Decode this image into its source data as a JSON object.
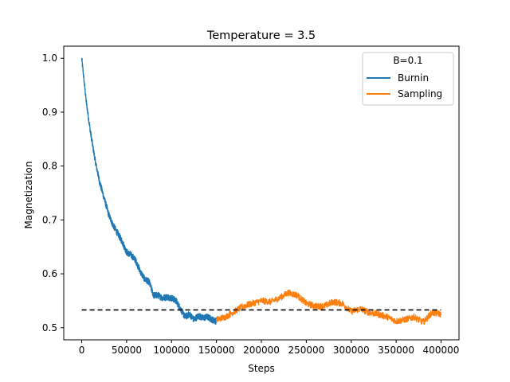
{
  "chart_data": {
    "type": "line",
    "title": "Temperature = 3.5",
    "xlabel": "Steps",
    "ylabel": "Magnetization",
    "xlim": [
      -20000,
      420000
    ],
    "ylim": [
      0.4775,
      1.0225
    ],
    "xticks": [
      0,
      50000,
      100000,
      150000,
      200000,
      250000,
      300000,
      350000,
      400000
    ],
    "yticks": [
      0.5,
      0.6,
      0.7,
      0.8,
      0.9,
      1.0
    ],
    "xtick_labels": [
      "0",
      "50000",
      "100000",
      "150000",
      "200000",
      "250000",
      "300000",
      "350000",
      "400000"
    ],
    "ytick_labels": [
      "0.5",
      "0.6",
      "0.7",
      "0.8",
      "0.9",
      "1.0"
    ],
    "grid": false,
    "legend": {
      "title": "B=0.1",
      "position": "top-right"
    },
    "series": [
      {
        "name": "Burnin",
        "color": "#1f77b4",
        "x": [
          0,
          5000,
          10000,
          15000,
          20000,
          25000,
          30000,
          35000,
          40000,
          45000,
          50000,
          55000,
          60000,
          65000,
          70000,
          75000,
          80000,
          85000,
          90000,
          95000,
          100000,
          105000,
          110000,
          115000,
          120000,
          125000,
          130000,
          135000,
          140000,
          145000,
          150000
        ],
        "y": [
          1.0,
          0.92,
          0.86,
          0.81,
          0.77,
          0.74,
          0.71,
          0.69,
          0.675,
          0.66,
          0.64,
          0.635,
          0.625,
          0.605,
          0.59,
          0.585,
          0.56,
          0.56,
          0.555,
          0.557,
          0.555,
          0.55,
          0.535,
          0.52,
          0.525,
          0.515,
          0.522,
          0.518,
          0.52,
          0.515,
          0.512
        ]
      },
      {
        "name": "Sampling",
        "color": "#ff7f0e",
        "x": [
          150000,
          160000,
          170000,
          180000,
          190000,
          200000,
          210000,
          220000,
          230000,
          240000,
          250000,
          260000,
          270000,
          280000,
          290000,
          300000,
          310000,
          320000,
          330000,
          340000,
          350000,
          360000,
          370000,
          380000,
          390000,
          400000
        ],
        "y": [
          0.515,
          0.52,
          0.53,
          0.54,
          0.545,
          0.55,
          0.548,
          0.555,
          0.565,
          0.56,
          0.545,
          0.54,
          0.54,
          0.548,
          0.545,
          0.53,
          0.535,
          0.528,
          0.525,
          0.52,
          0.512,
          0.515,
          0.52,
          0.51,
          0.528,
          0.525
        ]
      }
    ],
    "reference_line": {
      "y": 0.533,
      "x_range": [
        0,
        400000
      ],
      "style": "dashed",
      "color": "#000000"
    }
  }
}
